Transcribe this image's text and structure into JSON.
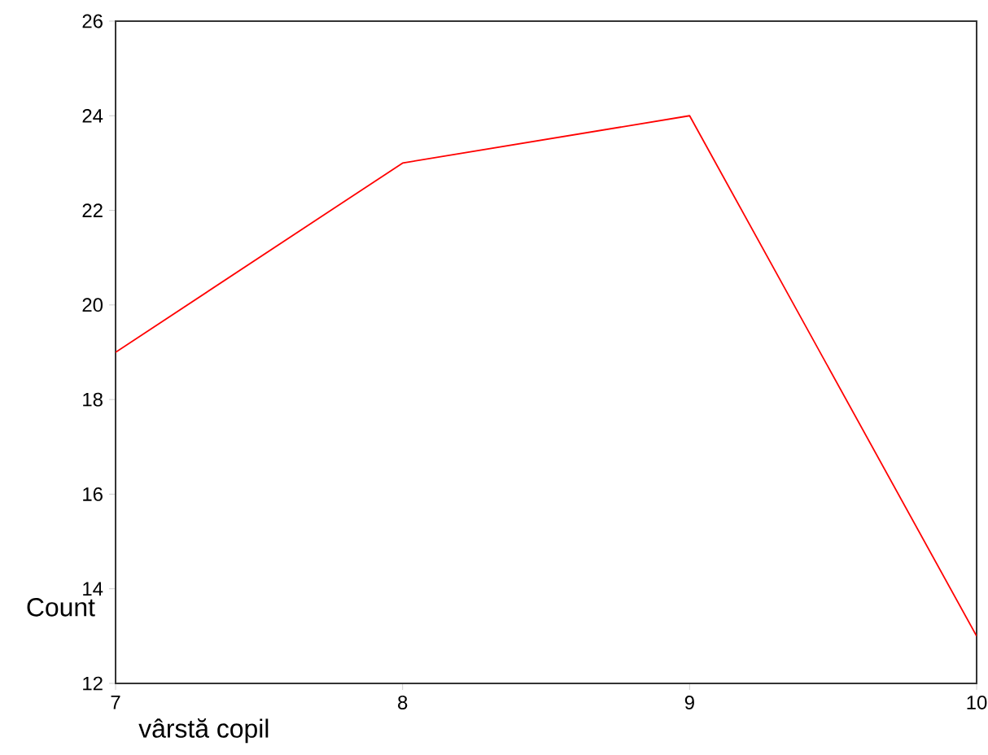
{
  "chart_data": {
    "type": "line",
    "xlabel": "vârstă copil",
    "ylabel": "Count",
    "x": [
      7,
      8,
      9,
      10
    ],
    "series": [
      {
        "color": "#ff0000",
        "values": [
          19,
          23,
          24,
          13
        ]
      }
    ],
    "xlim": [
      7,
      10
    ],
    "ylim": [
      12,
      26
    ],
    "xticks": [
      7,
      8,
      9,
      10
    ],
    "yticks": [
      12,
      14,
      16,
      18,
      20,
      22,
      24,
      26
    ],
    "marker": "none",
    "line_style": "solid"
  }
}
